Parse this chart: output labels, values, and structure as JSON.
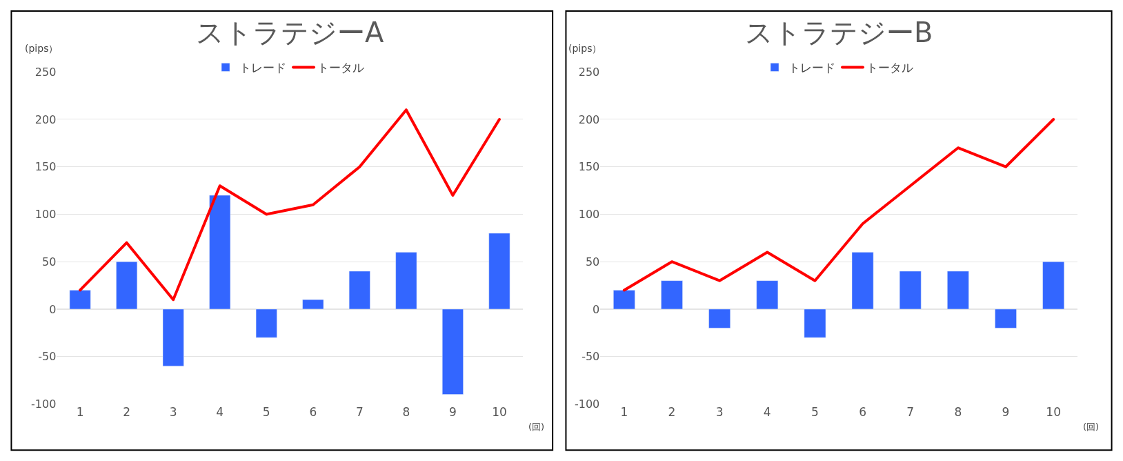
{
  "chart_data": [
    {
      "type": "bar",
      "title": "ストラテジーA",
      "ylabel": "(pips）",
      "xlabel": "(回)",
      "categories": [
        "1",
        "2",
        "3",
        "4",
        "5",
        "6",
        "7",
        "8",
        "9",
        "10"
      ],
      "series": [
        {
          "name": "トレード",
          "color": "#3366ff",
          "values": [
            20,
            50,
            -60,
            120,
            -30,
            10,
            40,
            60,
            -90,
            80
          ]
        },
        {
          "name": "トータル",
          "type": "line",
          "color": "#ff0000",
          "values": [
            20,
            70,
            10,
            130,
            100,
            110,
            150,
            210,
            120,
            200
          ]
        }
      ],
      "ylim": [
        -100,
        250
      ],
      "yticks": [
        -100,
        -50,
        0,
        50,
        100,
        150,
        200,
        250
      ],
      "grid": "y",
      "legend": "top",
      "marker": "none",
      "line_style": "solid"
    },
    {
      "type": "bar",
      "title": "ストラテジーB",
      "ylabel": "(pips）",
      "xlabel": "(回)",
      "categories": [
        "1",
        "2",
        "3",
        "4",
        "5",
        "6",
        "7",
        "8",
        "9",
        "10"
      ],
      "series": [
        {
          "name": "トレード",
          "color": "#3366ff",
          "values": [
            20,
            30,
            -20,
            30,
            -30,
            60,
            40,
            40,
            -20,
            50
          ]
        },
        {
          "name": "トータル",
          "type": "line",
          "color": "#ff0000",
          "values": [
            20,
            50,
            30,
            60,
            30,
            90,
            130,
            170,
            150,
            200
          ]
        }
      ],
      "ylim": [
        -100,
        250
      ],
      "yticks": [
        -100,
        -50,
        0,
        50,
        100,
        150,
        200,
        250
      ],
      "grid": "y",
      "legend": "top",
      "marker": "none",
      "line_style": "solid"
    }
  ]
}
